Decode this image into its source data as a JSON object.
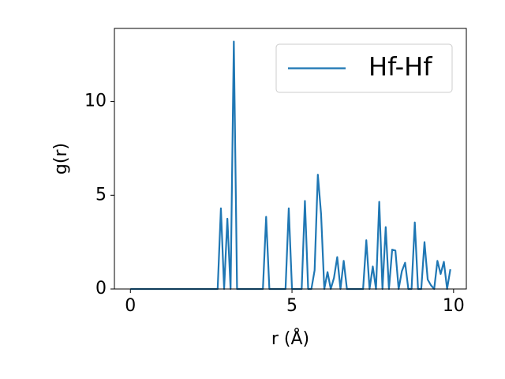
{
  "chart_data": {
    "type": "line",
    "xlabel": "r (Å)",
    "ylabel": "g(r)",
    "x": [
      0,
      0.1,
      0.2,
      0.3,
      0.4,
      0.5,
      0.6,
      0.7,
      0.8,
      0.9,
      1,
      1.1,
      1.2,
      1.3,
      1.4,
      1.5,
      1.6,
      1.7,
      1.8,
      1.9,
      2,
      2.1,
      2.2,
      2.3,
      2.4,
      2.5,
      2.6,
      2.7,
      2.8,
      2.9,
      3,
      3.1,
      3.2,
      3.3,
      3.4,
      3.5,
      3.6,
      3.7,
      3.8,
      3.9,
      4,
      4.1,
      4.2,
      4.3,
      4.4,
      4.5,
      4.6,
      4.7,
      4.8,
      4.9,
      5,
      5.1,
      5.2,
      5.3,
      5.4,
      5.5,
      5.6,
      5.7,
      5.8,
      5.9,
      6,
      6.1,
      6.2,
      6.3,
      6.4,
      6.5,
      6.6,
      6.7,
      6.8,
      6.9,
      7,
      7.1,
      7.2,
      7.3,
      7.4,
      7.5,
      7.6,
      7.7,
      7.8,
      7.9,
      8,
      8.1,
      8.2,
      8.3,
      8.4,
      8.5,
      8.6,
      8.7,
      8.8,
      8.9,
      9,
      9.1,
      9.2,
      9.3,
      9.4,
      9.5,
      9.6,
      9.7,
      9.8,
      9.9
    ],
    "series": [
      {
        "name": "Hf-Hf",
        "color": "#1f77b4",
        "values": [
          0,
          0,
          0,
          0,
          0,
          0,
          0,
          0,
          0,
          0,
          0,
          0,
          0,
          0,
          0,
          0,
          0,
          0,
          0,
          0,
          0,
          0,
          0,
          0,
          0,
          0,
          0,
          0,
          4.3,
          0,
          3.75,
          0,
          13.2,
          0,
          0,
          0,
          0,
          0,
          0,
          0,
          0,
          0,
          3.85,
          0,
          0,
          0,
          0,
          0,
          0,
          4.3,
          0,
          0,
          0,
          0,
          4.7,
          0,
          0,
          1.0,
          6.1,
          4.0,
          0,
          0.9,
          0,
          0.6,
          1.7,
          0,
          1.5,
          0,
          0,
          0,
          0,
          0,
          0,
          2.6,
          0,
          1.2,
          0,
          4.65,
          0,
          3.3,
          0,
          2.1,
          2.05,
          0,
          0.95,
          1.4,
          0,
          0,
          3.55,
          0,
          0,
          2.5,
          0.5,
          0.2,
          0,
          1.5,
          0.8,
          1.45,
          0,
          1.05
        ]
      }
    ],
    "xlim": [
      -0.495,
      10.395
    ],
    "ylim": [
      0,
      13.9
    ],
    "xticks": [
      0,
      5,
      10
    ],
    "yticks": [
      0,
      5,
      10
    ],
    "legend": "upper right"
  }
}
